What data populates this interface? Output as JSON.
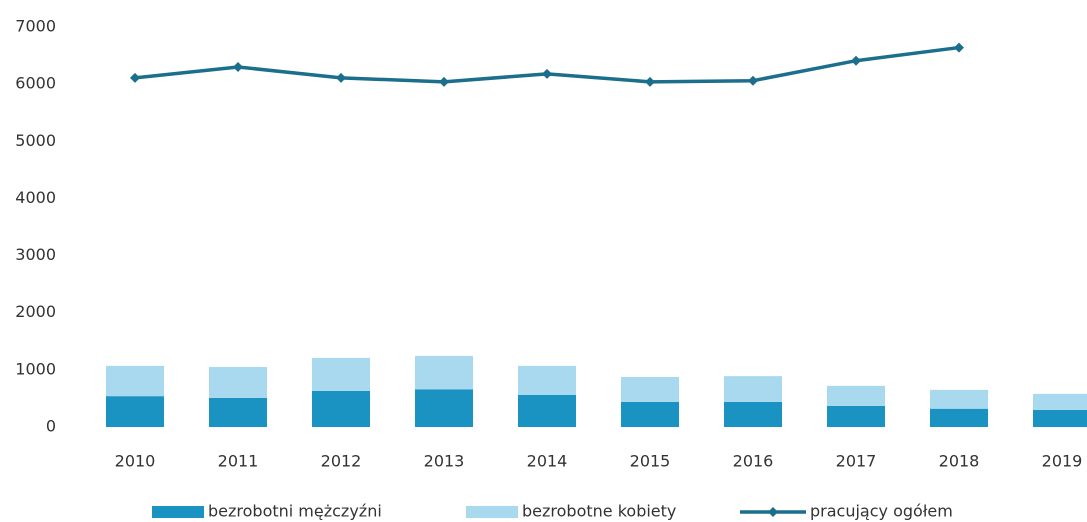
{
  "chart_data": {
    "type": "bar_line",
    "categories": [
      "2010",
      "2011",
      "2012",
      "2013",
      "2014",
      "2015",
      "2016",
      "2017",
      "2018",
      "2019"
    ],
    "series": [
      {
        "name": "bezrobotni mężczyźni",
        "color": "#1b93c2",
        "kind": "bar",
        "values": [
          540,
          510,
          630,
          660,
          560,
          440,
          440,
          370,
          320,
          300
        ]
      },
      {
        "name": "bezrobotne kobiety",
        "color": "#a9d9ee",
        "kind": "bar",
        "values": [
          530,
          540,
          580,
          585,
          510,
          435,
          450,
          350,
          330,
          280
        ]
      },
      {
        "name": "pracujący ogółem",
        "color": "#1c6f8c",
        "kind": "line",
        "values": [
          6110,
          6300,
          6110,
          6040,
          6180,
          6040,
          6060,
          6410,
          6640,
          null
        ]
      }
    ],
    "ylim": [
      0,
      7000
    ],
    "yticks": [
      0,
      1000,
      2000,
      3000,
      4000,
      5000,
      6000,
      7000
    ],
    "stacked": true
  }
}
